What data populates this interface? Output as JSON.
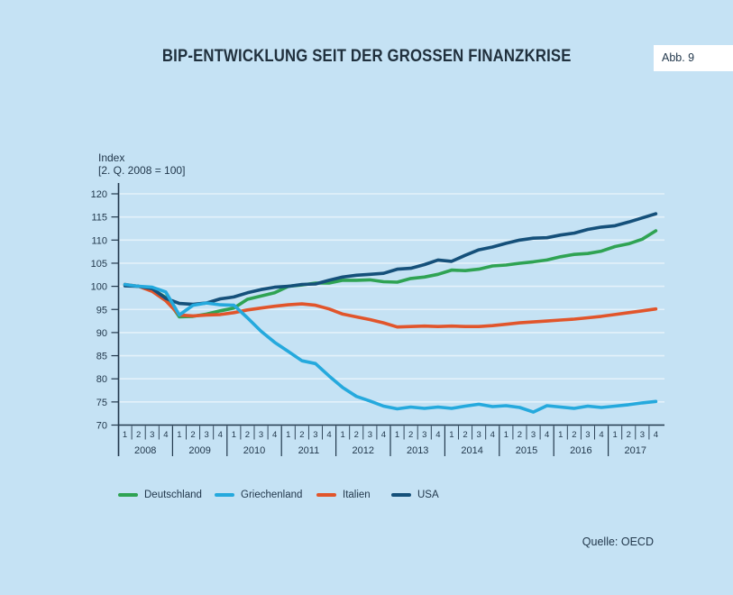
{
  "header": {
    "title": "BIP-ENTWICKLUNG SEIT DER GROSSEN FINANZKRISE",
    "badge": "Abb. 9"
  },
  "source": "Quelle: OECD",
  "chart_data": {
    "type": "line",
    "title": "BIP-Entwicklung seit der grossen Finanzkrise",
    "ylabel_lines": [
      "Index",
      "[2. Q. 2008 = 100]"
    ],
    "ylim": [
      70,
      120
    ],
    "yticks": [
      70,
      75,
      80,
      85,
      90,
      95,
      100,
      105,
      110,
      115,
      120
    ],
    "grid": true,
    "legend_position": "bottom",
    "years": [
      "2008",
      "2009",
      "2010",
      "2011",
      "2012",
      "2013",
      "2014",
      "2015",
      "2016",
      "2017"
    ],
    "quarter_labels": [
      "1",
      "2",
      "3",
      "4"
    ],
    "series": [
      {
        "name": "Deutschland",
        "color": "#2fa353",
        "values": [
          100.3,
          100.0,
          99.4,
          97.6,
          93.4,
          93.5,
          94.0,
          94.7,
          95.3,
          97.2,
          97.9,
          98.6,
          100.0,
          100.3,
          100.7,
          100.7,
          101.3,
          101.3,
          101.4,
          101.0,
          100.9,
          101.7,
          102.0,
          102.6,
          103.5,
          103.4,
          103.7,
          104.4,
          104.6,
          105.0,
          105.3,
          105.7,
          106.4,
          106.9,
          107.1,
          107.6,
          108.6,
          109.2,
          110.2,
          112.0
        ]
      },
      {
        "name": "Griechenland",
        "color": "#25a9dd",
        "values": [
          100.4,
          100.0,
          99.8,
          98.8,
          93.8,
          95.9,
          96.4,
          96.0,
          95.9,
          93.2,
          90.3,
          87.9,
          85.9,
          83.9,
          83.3,
          80.6,
          78.1,
          76.2,
          75.2,
          74.1,
          73.5,
          73.9,
          73.6,
          73.9,
          73.6,
          74.1,
          74.5,
          74.0,
          74.2,
          73.8,
          72.8,
          74.2,
          73.9,
          73.6,
          74.1,
          73.8,
          74.1,
          74.4,
          74.8,
          75.1
        ]
      },
      {
        "name": "Italien",
        "color": "#e1552b",
        "values": [
          100.4,
          100.0,
          98.9,
          96.9,
          93.8,
          93.6,
          93.8,
          93.9,
          94.3,
          94.9,
          95.3,
          95.7,
          96.0,
          96.2,
          95.9,
          95.1,
          94.0,
          93.4,
          92.8,
          92.1,
          91.2,
          91.3,
          91.4,
          91.3,
          91.4,
          91.3,
          91.3,
          91.5,
          91.8,
          92.1,
          92.3,
          92.5,
          92.7,
          92.9,
          93.2,
          93.5,
          93.9,
          94.3,
          94.7,
          95.1
        ]
      },
      {
        "name": "USA",
        "color": "#15507a",
        "values": [
          100.1,
          100.0,
          99.5,
          97.4,
          96.3,
          96.1,
          96.4,
          97.3,
          97.7,
          98.6,
          99.3,
          99.8,
          100.0,
          100.4,
          100.5,
          101.3,
          102.0,
          102.4,
          102.6,
          102.8,
          103.7,
          103.9,
          104.7,
          105.7,
          105.4,
          106.7,
          107.9,
          108.5,
          109.3,
          110.0,
          110.4,
          110.5,
          111.1,
          111.5,
          112.3,
          112.8,
          113.1,
          113.9,
          114.8,
          115.7
        ]
      }
    ]
  }
}
